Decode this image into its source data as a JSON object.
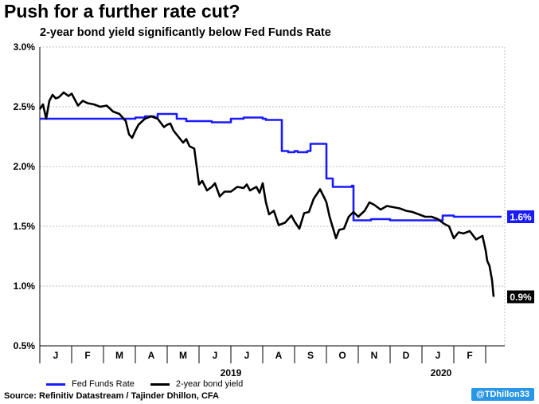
{
  "title": "Push for a further rate cut?",
  "subtitle": "2-year bond yield significantly below Fed Funds Rate",
  "source": "Source: Refinitiv Datastream / Tajinder Dhillon, CFA",
  "handle": "@TDhillon33",
  "chart_data": {
    "type": "line",
    "title": "Push for a further rate cut?",
    "subtitle": "2-year bond yield significantly below Fed Funds Rate",
    "xlabel": "",
    "ylabel": "",
    "ylim": [
      0.5,
      3.0
    ],
    "xlim": [
      0,
      14.6
    ],
    "y_ticks": [
      "0.5%",
      "1.0%",
      "1.5%",
      "2.0%",
      "2.5%",
      "3.0%"
    ],
    "y_tick_values": [
      0.5,
      1.0,
      1.5,
      2.0,
      2.5,
      3.0
    ],
    "month_labels": [
      "J",
      "F",
      "M",
      "A",
      "M",
      "J",
      "J",
      "A",
      "S",
      "O",
      "N",
      "D",
      "J",
      "F"
    ],
    "year_labels": [
      {
        "label": "2019",
        "month_index": 6
      },
      {
        "label": "2020",
        "month_index": 12.6
      }
    ],
    "grid": true,
    "legend_position": "bottom-left",
    "x_unit": "months since start of January 2019",
    "series": [
      {
        "name": "Fed Funds Rate",
        "color": "#1a1aff",
        "end_label": "1.6%",
        "x": [
          0,
          2.8,
          3.0,
          3.3,
          3.6,
          3.7,
          4.3,
          4.6,
          5.2,
          5.4,
          6.0,
          6.4,
          7.0,
          7.1,
          7.5,
          7.6,
          7.8,
          8.0,
          8.1,
          8.4,
          8.5,
          8.6,
          9.0,
          9.2,
          9.8,
          9.85,
          10.0,
          10.4,
          11.0,
          11.5,
          12.0,
          12.5,
          12.65,
          13.0,
          14.0,
          14.5
        ],
        "y": [
          2.4,
          2.4,
          2.41,
          2.42,
          2.41,
          2.44,
          2.4,
          2.38,
          2.38,
          2.37,
          2.4,
          2.41,
          2.4,
          2.39,
          2.39,
          2.13,
          2.12,
          2.13,
          2.12,
          2.13,
          2.19,
          2.19,
          1.9,
          1.83,
          1.84,
          1.55,
          1.55,
          1.56,
          1.55,
          1.55,
          1.55,
          1.55,
          1.59,
          1.58,
          1.58,
          1.58
        ]
      },
      {
        "name": "2-year bond yield",
        "color": "#000000",
        "end_label": "0.9%",
        "x": [
          0,
          0.1,
          0.2,
          0.3,
          0.4,
          0.5,
          0.6,
          0.75,
          0.9,
          1.0,
          1.2,
          1.35,
          1.5,
          1.7,
          1.9,
          2.1,
          2.3,
          2.5,
          2.7,
          2.8,
          2.9,
          3.0,
          3.1,
          3.3,
          3.5,
          3.7,
          3.9,
          4.0,
          4.1,
          4.2,
          4.35,
          4.5,
          4.6,
          4.7,
          4.85,
          5.0,
          5.1,
          5.25,
          5.4,
          5.5,
          5.65,
          5.8,
          6.0,
          6.2,
          6.4,
          6.5,
          6.6,
          6.8,
          6.9,
          7.0,
          7.1,
          7.2,
          7.35,
          7.5,
          7.7,
          7.9,
          8.0,
          8.15,
          8.3,
          8.45,
          8.6,
          8.8,
          8.95,
          9.0,
          9.1,
          9.3,
          9.4,
          9.55,
          9.7,
          9.85,
          10.0,
          10.2,
          10.35,
          10.5,
          10.7,
          10.9,
          11.1,
          11.3,
          11.5,
          11.7,
          11.9,
          12.1,
          12.3,
          12.5,
          12.7,
          12.85,
          13.0,
          13.15,
          13.3,
          13.5,
          13.7,
          13.9,
          14.0,
          14.05,
          14.12,
          14.2,
          14.25
        ],
        "y": [
          2.48,
          2.52,
          2.4,
          2.55,
          2.6,
          2.57,
          2.58,
          2.62,
          2.59,
          2.61,
          2.51,
          2.55,
          2.53,
          2.52,
          2.5,
          2.51,
          2.46,
          2.44,
          2.38,
          2.27,
          2.24,
          2.3,
          2.35,
          2.4,
          2.42,
          2.4,
          2.33,
          2.35,
          2.36,
          2.3,
          2.25,
          2.2,
          2.23,
          2.17,
          2.15,
          1.85,
          1.88,
          1.8,
          1.83,
          1.86,
          1.75,
          1.79,
          1.79,
          1.83,
          1.82,
          1.85,
          1.8,
          1.83,
          1.78,
          1.86,
          1.7,
          1.6,
          1.63,
          1.51,
          1.53,
          1.59,
          1.54,
          1.48,
          1.61,
          1.62,
          1.73,
          1.81,
          1.73,
          1.7,
          1.58,
          1.4,
          1.47,
          1.48,
          1.58,
          1.62,
          1.58,
          1.63,
          1.7,
          1.68,
          1.64,
          1.67,
          1.66,
          1.65,
          1.63,
          1.62,
          1.6,
          1.58,
          1.58,
          1.56,
          1.52,
          1.5,
          1.4,
          1.45,
          1.44,
          1.46,
          1.39,
          1.42,
          1.3,
          1.21,
          1.17,
          1.05,
          0.91
        ]
      }
    ]
  }
}
